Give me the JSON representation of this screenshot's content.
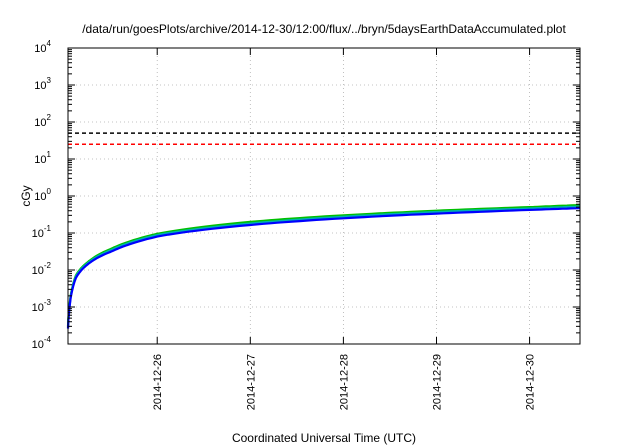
{
  "chart_data": {
    "type": "line",
    "title": "/data/run/goesPlots/archive/2014-12-30/12:00/flux/../bryn/5daysEarthDataAccumulated.plot",
    "xlabel": "Coordinated Universal Time (UTC)",
    "ylabel": "cGy",
    "yscale": "log",
    "ylim": [
      0.0001,
      10000
    ],
    "y_ticks": [
      {
        "value": 0.0001,
        "base": "10",
        "exp": "-4"
      },
      {
        "value": 0.001,
        "base": "10",
        "exp": "-3"
      },
      {
        "value": 0.01,
        "base": "10",
        "exp": "-2"
      },
      {
        "value": 0.1,
        "base": "10",
        "exp": "-1"
      },
      {
        "value": 1,
        "base": "10",
        "exp": "0"
      },
      {
        "value": 10,
        "base": "10",
        "exp": "1"
      },
      {
        "value": 100,
        "base": "10",
        "exp": "2"
      },
      {
        "value": 1000,
        "base": "10",
        "exp": "3"
      },
      {
        "value": 10000,
        "base": "10",
        "exp": "4"
      }
    ],
    "xlim": [
      "2014-12-25T01:00",
      "2014-12-30T13:00"
    ],
    "x_ticks": [
      "2014-12-26",
      "2014-12-27",
      "2014-12-28",
      "2014-12-29",
      "2014-12-30"
    ],
    "grid": true,
    "thresholds": [
      {
        "value": 50,
        "color": "#000000",
        "style": "dashed"
      },
      {
        "value": 25,
        "color": "#ff0000",
        "style": "dashed"
      }
    ],
    "series": [
      {
        "color": "#00c000",
        "x": [
          "2014-12-25T01:00",
          "2014-12-25T03:00",
          "2014-12-25T06:00",
          "2014-12-25T12:00",
          "2014-12-26T00:00",
          "2014-12-27T00:00",
          "2014-12-28T00:00",
          "2014-12-29T00:00",
          "2014-12-30T00:00",
          "2014-12-30T13:00"
        ],
        "y": [
          0.0003,
          0.007,
          0.016,
          0.037,
          0.095,
          0.2,
          0.3,
          0.4,
          0.5,
          0.57
        ]
      },
      {
        "color": "#00b0b0",
        "x": [
          "2014-12-25T01:00",
          "2014-12-25T03:00",
          "2014-12-25T06:00",
          "2014-12-25T12:00",
          "2014-12-26T00:00",
          "2014-12-27T00:00",
          "2014-12-28T00:00",
          "2014-12-29T00:00",
          "2014-12-30T00:00",
          "2014-12-30T13:00"
        ],
        "y": [
          0.00028,
          0.0066,
          0.015,
          0.034,
          0.088,
          0.18,
          0.275,
          0.37,
          0.46,
          0.52
        ]
      },
      {
        "color": "#0000ff",
        "x": [
          "2014-12-25T01:00",
          "2014-12-25T03:00",
          "2014-12-25T06:00",
          "2014-12-25T12:00",
          "2014-12-26T00:00",
          "2014-12-27T00:00",
          "2014-12-28T00:00",
          "2014-12-29T00:00",
          "2014-12-30T00:00",
          "2014-12-30T13:00"
        ],
        "y": [
          0.00026,
          0.006,
          0.014,
          0.031,
          0.08,
          0.165,
          0.25,
          0.335,
          0.42,
          0.47
        ]
      }
    ]
  }
}
